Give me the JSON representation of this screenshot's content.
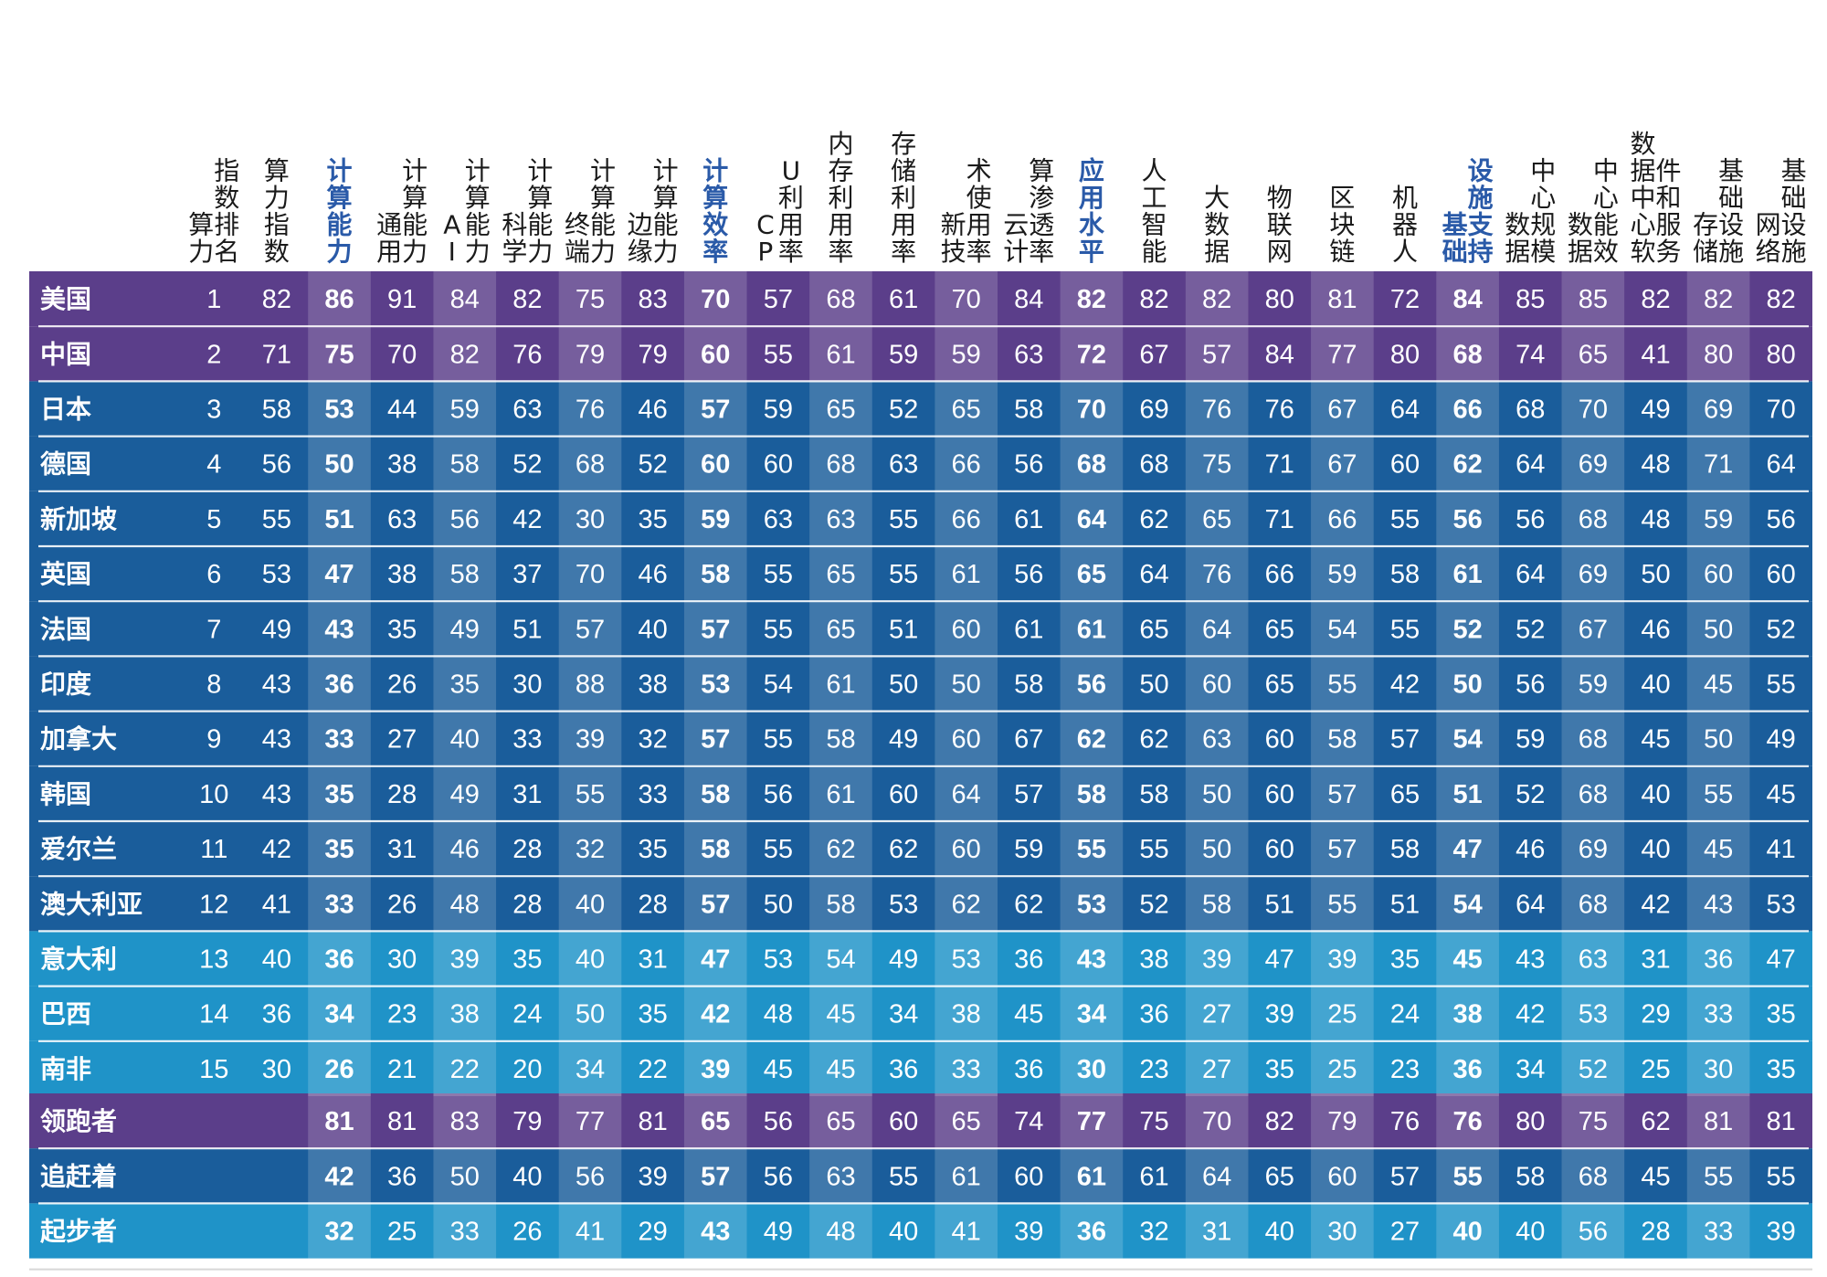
{
  "colors": {
    "leader": "#5b3e8a",
    "chaser": "#1a5d9b",
    "starter": "#1f93c8",
    "highlight_overlay": "#ffffff"
  },
  "chart_data": {
    "type": "table",
    "columns": [
      {
        "label": "算力指数排名",
        "category": false
      },
      {
        "label": "算力指数",
        "category": false
      },
      {
        "label": "计算能力",
        "category": true
      },
      {
        "label": "通用计算能力",
        "category": false
      },
      {
        "label": "AI计算能力",
        "category": false
      },
      {
        "label": "科学计算能力",
        "category": false
      },
      {
        "label": "终端计算能力",
        "category": false
      },
      {
        "label": "边缘计算能力",
        "category": false
      },
      {
        "label": "计算效率",
        "category": true
      },
      {
        "label": "CPU利用率",
        "category": false
      },
      {
        "label": "内存利用率",
        "category": false
      },
      {
        "label": "存储利用率",
        "category": false
      },
      {
        "label": "新技术使用率",
        "category": false
      },
      {
        "label": "云计算渗透率",
        "category": false
      },
      {
        "label": "应用水平",
        "category": true
      },
      {
        "label": "人工智能",
        "category": false
      },
      {
        "label": "大数据",
        "category": false
      },
      {
        "label": "物联网",
        "category": false
      },
      {
        "label": "区块链",
        "category": false
      },
      {
        "label": "机器人",
        "category": false
      },
      {
        "label": "基础设施支持",
        "category": true
      },
      {
        "label": "数据中心规模",
        "category": false
      },
      {
        "label": "数据中心能效",
        "category": false
      },
      {
        "label": "数据中心软件和服务",
        "category": false
      },
      {
        "label": "存储基础设施",
        "category": false
      },
      {
        "label": "网络基础设施",
        "category": false
      }
    ],
    "rows": [
      {
        "name": "美国",
        "group": "leader",
        "values": [
          "1",
          "82",
          "86",
          "91",
          "84",
          "82",
          "75",
          "83",
          "70",
          "57",
          "68",
          "61",
          "70",
          "84",
          "82",
          "82",
          "82",
          "80",
          "81",
          "72",
          "84",
          "85",
          "85",
          "82",
          "82",
          "82"
        ]
      },
      {
        "name": "中国",
        "group": "leader",
        "values": [
          "2",
          "71",
          "75",
          "70",
          "82",
          "76",
          "79",
          "79",
          "60",
          "55",
          "61",
          "59",
          "59",
          "63",
          "72",
          "67",
          "57",
          "84",
          "77",
          "80",
          "68",
          "74",
          "65",
          "41",
          "80",
          "80"
        ]
      },
      {
        "name": "日本",
        "group": "chaser",
        "values": [
          "3",
          "58",
          "53",
          "44",
          "59",
          "63",
          "76",
          "46",
          "57",
          "59",
          "65",
          "52",
          "65",
          "58",
          "70",
          "69",
          "76",
          "76",
          "67",
          "64",
          "66",
          "68",
          "70",
          "49",
          "69",
          "70"
        ]
      },
      {
        "name": "德国",
        "group": "chaser",
        "values": [
          "4",
          "56",
          "50",
          "38",
          "58",
          "52",
          "68",
          "52",
          "60",
          "60",
          "68",
          "63",
          "66",
          "56",
          "68",
          "68",
          "75",
          "71",
          "67",
          "60",
          "62",
          "64",
          "69",
          "48",
          "71",
          "64"
        ]
      },
      {
        "name": "新加坡",
        "group": "chaser",
        "values": [
          "5",
          "55",
          "51",
          "63",
          "56",
          "42",
          "30",
          "35",
          "59",
          "63",
          "63",
          "55",
          "66",
          "61",
          "64",
          "62",
          "65",
          "71",
          "66",
          "55",
          "56",
          "56",
          "68",
          "48",
          "59",
          "56"
        ]
      },
      {
        "name": "英国",
        "group": "chaser",
        "values": [
          "6",
          "53",
          "47",
          "38",
          "58",
          "37",
          "70",
          "46",
          "58",
          "55",
          "65",
          "55",
          "61",
          "56",
          "65",
          "64",
          "76",
          "66",
          "59",
          "58",
          "61",
          "64",
          "69",
          "50",
          "60",
          "60"
        ]
      },
      {
        "name": "法国",
        "group": "chaser",
        "values": [
          "7",
          "49",
          "43",
          "35",
          "49",
          "51",
          "57",
          "40",
          "57",
          "55",
          "65",
          "51",
          "60",
          "61",
          "61",
          "65",
          "64",
          "65",
          "54",
          "55",
          "52",
          "52",
          "67",
          "46",
          "50",
          "52"
        ]
      },
      {
        "name": "印度",
        "group": "chaser",
        "values": [
          "8",
          "43",
          "36",
          "26",
          "35",
          "30",
          "88",
          "38",
          "53",
          "54",
          "61",
          "50",
          "50",
          "58",
          "56",
          "50",
          "60",
          "65",
          "55",
          "42",
          "50",
          "56",
          "59",
          "40",
          "45",
          "55"
        ]
      },
      {
        "name": "加拿大",
        "group": "chaser",
        "values": [
          "9",
          "43",
          "33",
          "27",
          "40",
          "33",
          "39",
          "32",
          "57",
          "55",
          "58",
          "49",
          "60",
          "67",
          "62",
          "62",
          "63",
          "60",
          "58",
          "57",
          "54",
          "59",
          "68",
          "45",
          "50",
          "49"
        ]
      },
      {
        "name": "韩国",
        "group": "chaser",
        "values": [
          "10",
          "43",
          "35",
          "28",
          "49",
          "31",
          "55",
          "33",
          "58",
          "56",
          "61",
          "60",
          "64",
          "57",
          "58",
          "58",
          "50",
          "60",
          "57",
          "65",
          "51",
          "52",
          "68",
          "40",
          "55",
          "45"
        ]
      },
      {
        "name": "爱尔兰",
        "group": "chaser",
        "values": [
          "11",
          "42",
          "35",
          "31",
          "46",
          "28",
          "32",
          "35",
          "58",
          "55",
          "62",
          "62",
          "60",
          "59",
          "55",
          "55",
          "50",
          "60",
          "57",
          "58",
          "47",
          "46",
          "69",
          "40",
          "45",
          "41"
        ]
      },
      {
        "name": "澳大利亚",
        "group": "chaser",
        "values": [
          "12",
          "41",
          "33",
          "26",
          "48",
          "28",
          "40",
          "28",
          "57",
          "50",
          "58",
          "53",
          "62",
          "62",
          "53",
          "52",
          "58",
          "51",
          "55",
          "51",
          "54",
          "64",
          "68",
          "42",
          "43",
          "53"
        ]
      },
      {
        "name": "意大利",
        "group": "starter",
        "values": [
          "13",
          "40",
          "36",
          "30",
          "39",
          "35",
          "40",
          "31",
          "47",
          "53",
          "54",
          "49",
          "53",
          "36",
          "43",
          "38",
          "39",
          "47",
          "39",
          "35",
          "45",
          "43",
          "63",
          "31",
          "36",
          "47"
        ]
      },
      {
        "name": "巴西",
        "group": "starter",
        "values": [
          "14",
          "36",
          "34",
          "23",
          "38",
          "24",
          "50",
          "35",
          "42",
          "48",
          "45",
          "34",
          "38",
          "45",
          "34",
          "36",
          "27",
          "39",
          "25",
          "24",
          "38",
          "42",
          "53",
          "29",
          "33",
          "35"
        ]
      },
      {
        "name": "南非",
        "group": "starter",
        "values": [
          "15",
          "30",
          "26",
          "21",
          "22",
          "20",
          "34",
          "22",
          "39",
          "45",
          "45",
          "36",
          "33",
          "36",
          "30",
          "23",
          "27",
          "35",
          "25",
          "23",
          "36",
          "34",
          "52",
          "25",
          "30",
          "35"
        ]
      }
    ],
    "summary_rows": [
      {
        "name": "领跑者",
        "group": "leader",
        "values": [
          "",
          "",
          "81",
          "81",
          "83",
          "79",
          "77",
          "81",
          "65",
          "56",
          "65",
          "60",
          "65",
          "74",
          "77",
          "75",
          "70",
          "82",
          "79",
          "76",
          "76",
          "80",
          "75",
          "62",
          "81",
          "81"
        ]
      },
      {
        "name": "追赶着",
        "group": "chaser",
        "values": [
          "",
          "",
          "42",
          "36",
          "50",
          "40",
          "56",
          "39",
          "57",
          "56",
          "63",
          "55",
          "61",
          "60",
          "61",
          "61",
          "64",
          "65",
          "60",
          "57",
          "55",
          "58",
          "68",
          "45",
          "55",
          "55"
        ]
      },
      {
        "name": "起步者",
        "group": "starter",
        "values": [
          "",
          "",
          "32",
          "25",
          "33",
          "26",
          "41",
          "29",
          "43",
          "49",
          "48",
          "40",
          "41",
          "39",
          "36",
          "32",
          "31",
          "40",
          "30",
          "27",
          "40",
          "40",
          "56",
          "28",
          "33",
          "39"
        ]
      }
    ]
  }
}
